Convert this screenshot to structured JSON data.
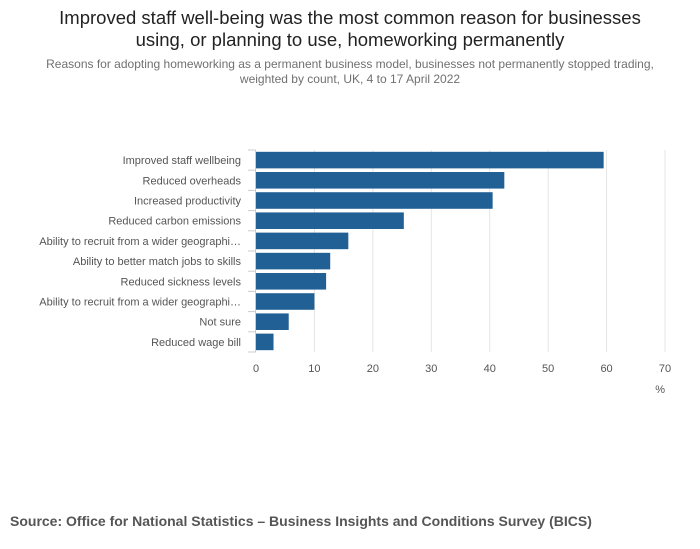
{
  "header": {
    "title_line1": "Improved staff well-being was the most common reason for businesses",
    "title_line2": "using, or planning to use, homeworking permanently",
    "subtitle_line1": "Reasons for adopting homeworking as a permanent business model, businesses not permanently stopped trading,",
    "subtitle_line2": "weighted by count, UK, 4 to 17 April 2022"
  },
  "colors": {
    "bar": "#206095",
    "grid": "#e5e5e5",
    "text": "#555555"
  },
  "chart_data": {
    "type": "bar",
    "orientation": "horizontal",
    "categories": [
      "Improved staff wellbeing",
      "Reduced overheads",
      "Increased productivity",
      "Reduced carbon emissions",
      "Ability to recruit from a wider geographi…",
      "Ability to better match jobs to skills",
      "Reduced sickness levels",
      "Ability to recruit from a wider geographi…",
      "Not sure",
      "Reduced wage bill"
    ],
    "values": [
      59.5,
      42.5,
      40.5,
      25.3,
      15.8,
      12.7,
      12.0,
      10.0,
      5.6,
      3.0
    ],
    "xlim": [
      0,
      70
    ],
    "xticks": [
      0,
      10,
      20,
      30,
      40,
      50,
      60,
      70
    ],
    "xlabel": "%",
    "grid": true
  },
  "footer": {
    "source": "Source: Office for National Statistics – Business Insights and Conditions Survey (BICS)"
  }
}
